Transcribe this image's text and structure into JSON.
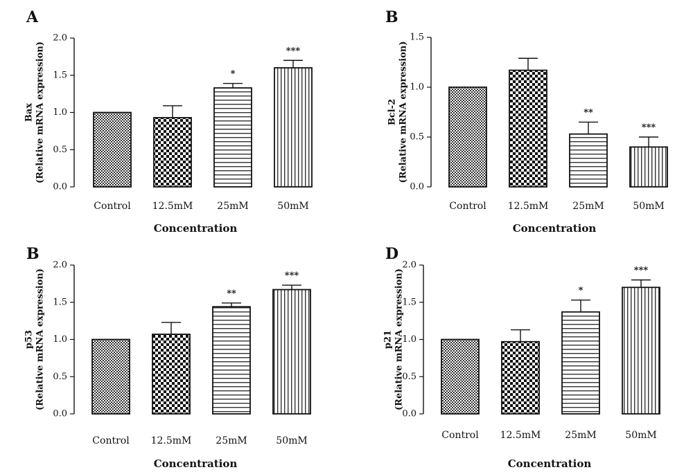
{
  "chart_data": [
    {
      "type": "bar",
      "panel": "A",
      "categories": [
        "Control",
        "12.5mM",
        "25mM",
        "50mM"
      ],
      "values": [
        1.0,
        0.93,
        1.33,
        1.6
      ],
      "errors": [
        0.0,
        0.16,
        0.06,
        0.1
      ],
      "significance": [
        "",
        "",
        "*",
        "***"
      ],
      "xlabel": "Concentration",
      "ylabel_gene": "Bax",
      "ylabel": "(Relative mRNA expression)",
      "ylim": [
        0,
        2.0
      ],
      "yticks": [
        "0.0",
        "0.5",
        "1.0",
        "1.5",
        "2.0"
      ],
      "tick_values": [
        0,
        0.5,
        1.0,
        1.5,
        2.0
      ]
    },
    {
      "type": "bar",
      "panel": "B",
      "categories": [
        "Control",
        "12.5mM",
        "25mM",
        "50mM"
      ],
      "values": [
        1.0,
        1.17,
        0.53,
        0.4
      ],
      "errors": [
        0.0,
        0.12,
        0.12,
        0.1
      ],
      "significance": [
        "",
        "",
        "**",
        "***"
      ],
      "xlabel": "Concentration",
      "ylabel_gene": "Bcl-2",
      "ylabel": "(Relative mRNA expression)",
      "ylim": [
        0,
        1.5
      ],
      "yticks": [
        "0.0",
        "0.5",
        "1.0",
        "1.5"
      ],
      "tick_values": [
        0,
        0.5,
        1.0,
        1.5
      ]
    },
    {
      "type": "bar",
      "panel": "B",
      "categories": [
        "Control",
        "12.5mM",
        "25mM",
        "50mM"
      ],
      "values": [
        1.0,
        1.07,
        1.44,
        1.67
      ],
      "errors": [
        0.0,
        0.16,
        0.05,
        0.06
      ],
      "significance": [
        "",
        "",
        "**",
        "***"
      ],
      "xlabel": "Concentration",
      "ylabel_gene": "p53",
      "ylabel": "(Relative mRNA expression)",
      "ylim": [
        0,
        2.0
      ],
      "yticks": [
        "0.0",
        "0.5",
        "1.0",
        "1.5",
        "2.0"
      ],
      "tick_values": [
        0,
        0.5,
        1.0,
        1.5,
        2.0
      ]
    },
    {
      "type": "bar",
      "panel": "D",
      "categories": [
        "Control",
        "12.5mM",
        "25mM",
        "50mM"
      ],
      "values": [
        1.0,
        0.97,
        1.37,
        1.7
      ],
      "errors": [
        0.0,
        0.16,
        0.16,
        0.1
      ],
      "significance": [
        "",
        "",
        "*",
        "***"
      ],
      "xlabel": "Concentration",
      "ylabel_gene": "p21",
      "ylabel": "(Relative mRNA expression)",
      "ylim": [
        0,
        2.0
      ],
      "yticks": [
        "0.0",
        "0.5",
        "1.0",
        "1.5",
        "2.0"
      ],
      "tick_values": [
        0,
        0.5,
        1.0,
        1.5,
        2.0
      ]
    }
  ],
  "bar_patterns": [
    "fine-dots",
    "checker",
    "horizontal-lines",
    "vertical-lines"
  ],
  "colors": {
    "ink": "#111111",
    "background": "#ffffff"
  }
}
